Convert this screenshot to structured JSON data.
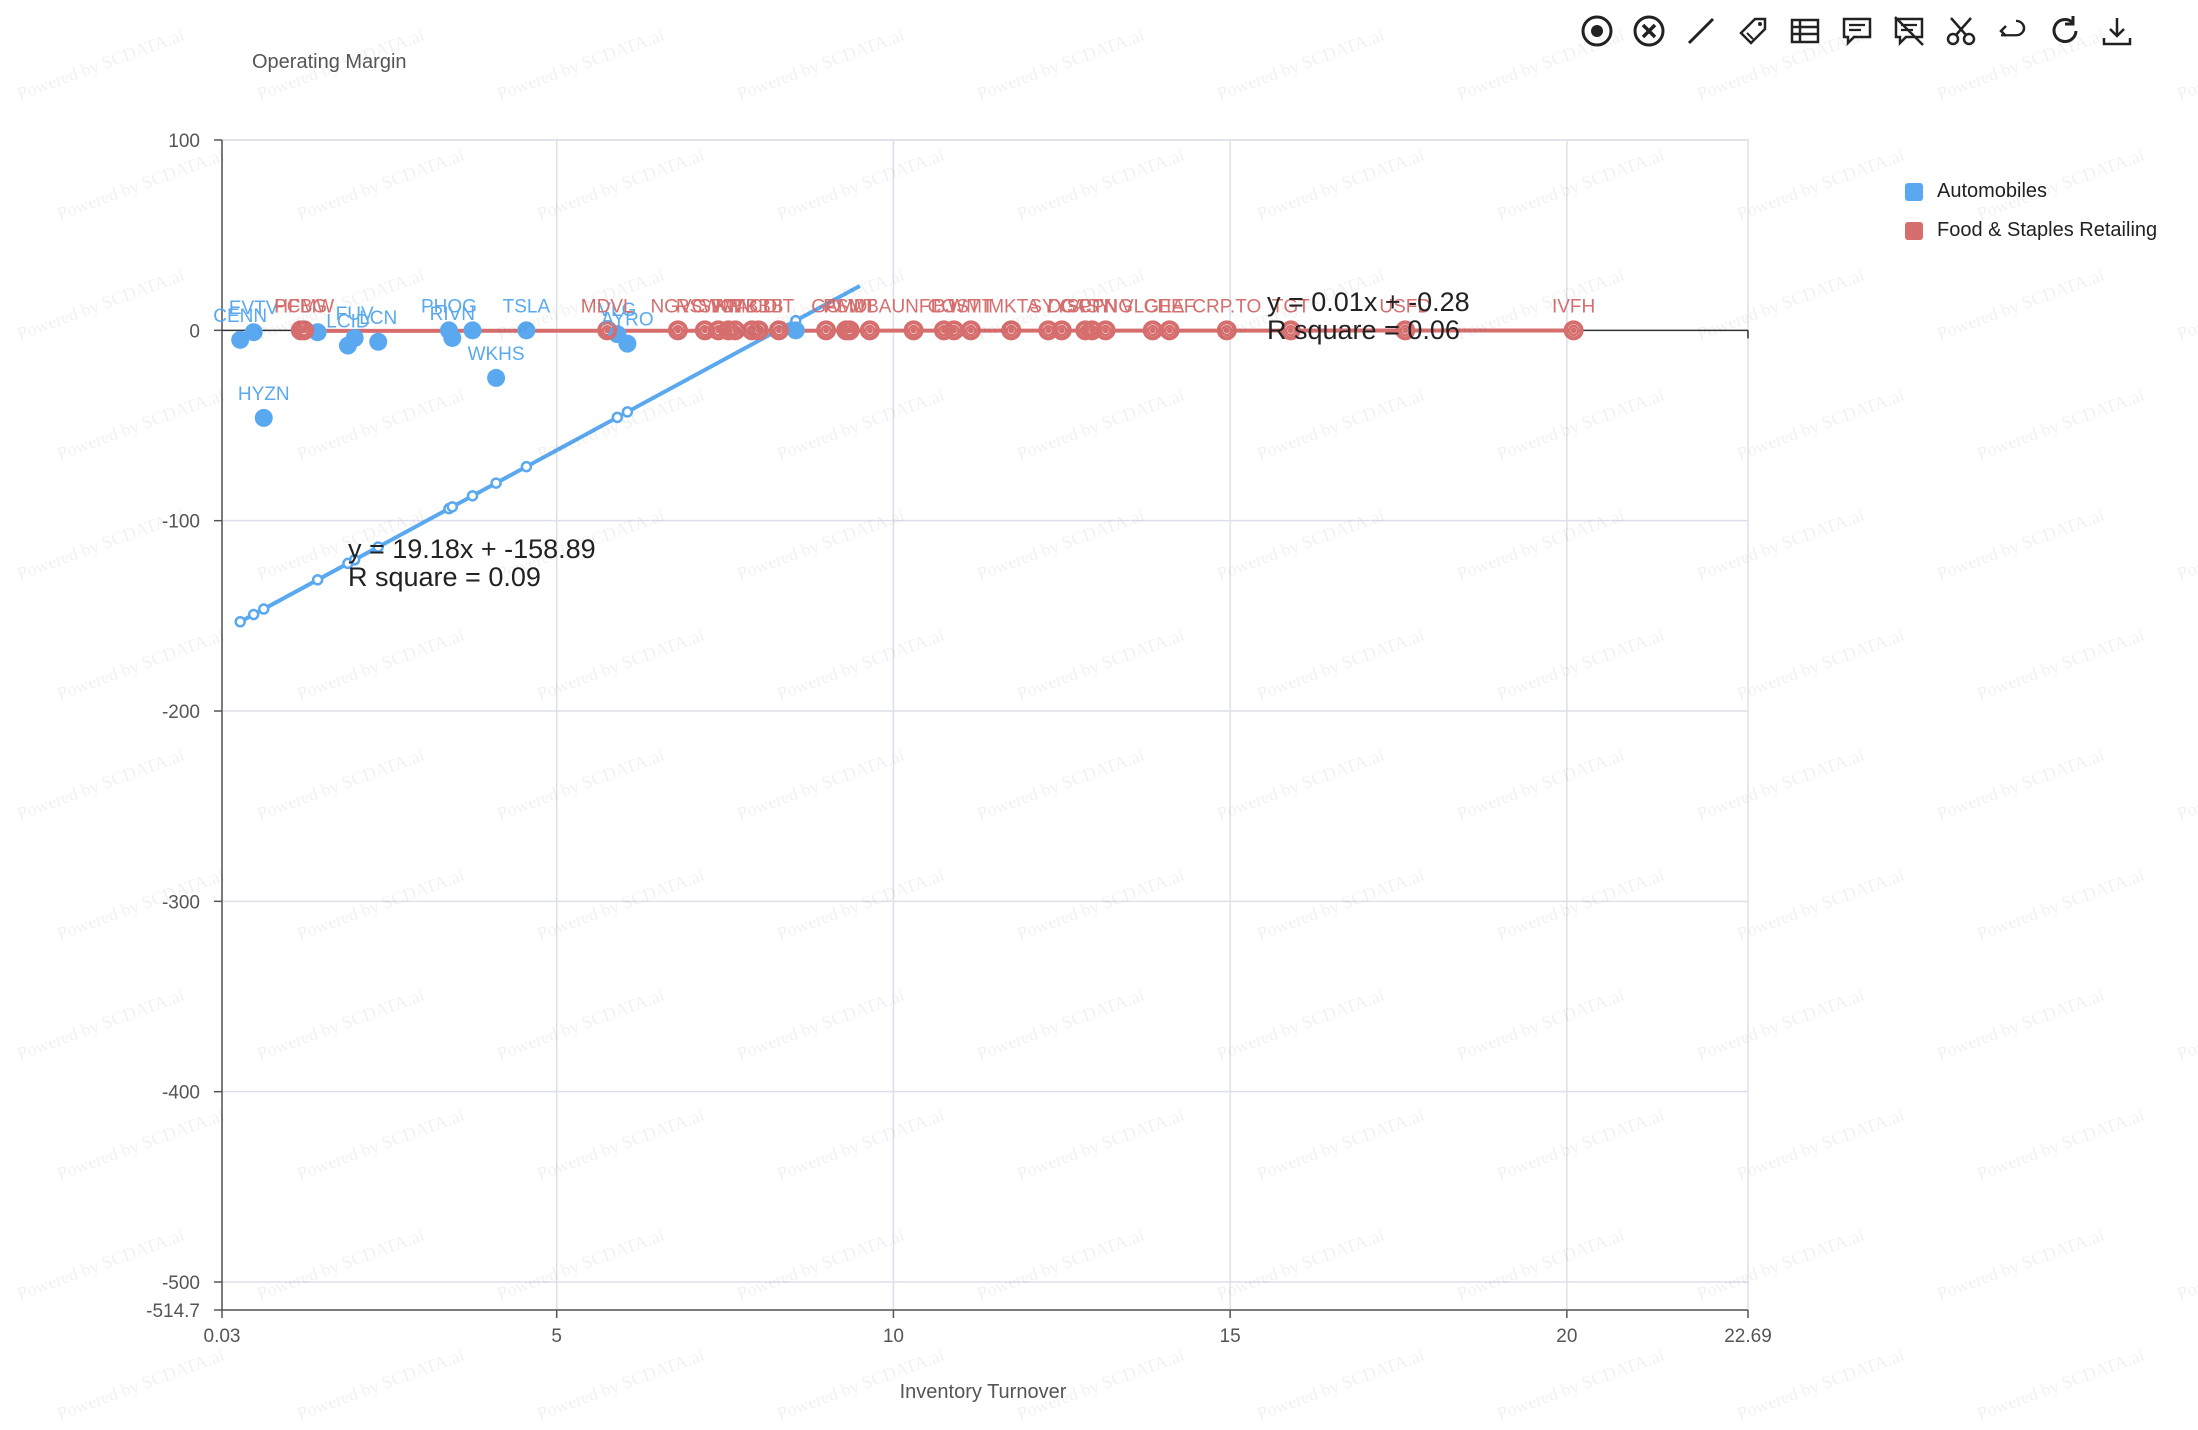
{
  "toolbar": [
    {
      "name": "target-icon",
      "title": "target"
    },
    {
      "name": "clear-icon",
      "title": "clear"
    },
    {
      "name": "line-icon",
      "title": "line"
    },
    {
      "name": "tag-icon",
      "title": "tag"
    },
    {
      "name": "table-icon",
      "title": "table"
    },
    {
      "name": "comment-icon",
      "title": "comment"
    },
    {
      "name": "comment-off-icon",
      "title": "comment off"
    },
    {
      "name": "cut-icon",
      "title": "cut"
    },
    {
      "name": "undo-icon",
      "title": "undo"
    },
    {
      "name": "refresh-icon",
      "title": "refresh"
    },
    {
      "name": "download-icon",
      "title": "download"
    }
  ],
  "watermark_text": "Powered by SCDATA.ai",
  "chart_data": {
    "type": "scatter",
    "xlabel": "Inventory Turnover",
    "ylabel": "Operating Margin",
    "xlim": [
      0.03,
      22.69
    ],
    "ylim": [
      -514.7,
      100
    ],
    "x_ticks": [
      0.03,
      5,
      10,
      15,
      20,
      22.69
    ],
    "x_tick_labels": [
      "0.03",
      "5",
      "10",
      "15",
      "20",
      "22.69"
    ],
    "y_ticks": [
      100,
      0,
      -100,
      -200,
      -300,
      -400,
      -500,
      -514.7
    ],
    "y_tick_labels": [
      "100",
      "0",
      "-100",
      "-200",
      "-300",
      "-400",
      "-500",
      "-514.7"
    ],
    "grid": true,
    "legend_position": "right",
    "series": [
      {
        "name": "Automobiles",
        "color": "#5aa9f0",
        "points": [
          {
            "label": "CENN",
            "x": 0.3,
            "y": -5
          },
          {
            "label": "EVTV",
            "x": 0.5,
            "y": -1
          },
          {
            "label": "HYZN",
            "x": 0.65,
            "y": -46
          },
          {
            "label": "",
            "x": 1.45,
            "y": -1
          },
          {
            "label": "LCID",
            "x": 1.9,
            "y": -8
          },
          {
            "label": "FUV",
            "x": 2.0,
            "y": -4
          },
          {
            "label": "LCN",
            "x": 2.35,
            "y": -6
          },
          {
            "label": "PHOG",
            "x": 3.4,
            "y": 0
          },
          {
            "label": "RIVN",
            "x": 3.45,
            "y": -4
          },
          {
            "label": "",
            "x": 3.75,
            "y": 0
          },
          {
            "label": "WKHS",
            "x": 4.1,
            "y": -25
          },
          {
            "label": "TSLA",
            "x": 4.55,
            "y": 0
          },
          {
            "label": "VLG",
            "x": 5.9,
            "y": -2
          },
          {
            "label": "AYRO",
            "x": 6.05,
            "y": -7
          },
          {
            "label": "",
            "x": 8.55,
            "y": 0
          }
        ],
        "trendline": {
          "slope": 19.18,
          "intercept": -158.89,
          "x_range": [
            0.3,
            9.5
          ],
          "equation": "y = 19.18x + -158.89",
          "r_square": "R square = 0.09"
        }
      },
      {
        "name": "Food & Staples Retailing",
        "color": "#d66e6e",
        "points": [
          {
            "label": "HFBG",
            "x": 1.2,
            "y": 0
          },
          {
            "label": "PCMW",
            "x": 1.25,
            "y": 0
          },
          {
            "label": "MDVL",
            "x": 5.75,
            "y": 0
          },
          {
            "label": "NGVC",
            "x": 6.8,
            "y": 0
          },
          {
            "label": "RSWC",
            "x": 7.2,
            "y": 0
          },
          {
            "label": "SFM",
            "x": 7.4,
            "y": 0
          },
          {
            "label": "KR",
            "x": 7.55,
            "y": 0
          },
          {
            "label": "WMK",
            "x": 7.65,
            "y": 0
          },
          {
            "label": "ACI",
            "x": 7.9,
            "y": 0
          },
          {
            "label": "TBBB",
            "x": 8.0,
            "y": 0
          },
          {
            "label": "DIT",
            "x": 8.3,
            "y": 0
          },
          {
            "label": "GO",
            "x": 9.0,
            "y": 0
          },
          {
            "label": "AMD",
            "x": 9.3,
            "y": 0
          },
          {
            "label": "PSMT",
            "x": 9.35,
            "y": 0
          },
          {
            "label": "WBA",
            "x": 9.65,
            "y": 0
          },
          {
            "label": "UNFI",
            "x": 10.3,
            "y": 0
          },
          {
            "label": "BJ",
            "x": 10.75,
            "y": 0
          },
          {
            "label": "COST",
            "x": 10.9,
            "y": 0
          },
          {
            "label": "WMT",
            "x": 11.15,
            "y": 0
          },
          {
            "label": "IMKTA",
            "x": 11.75,
            "y": 0
          },
          {
            "label": "SYY",
            "x": 12.3,
            "y": 0
          },
          {
            "label": "DG",
            "x": 12.5,
            "y": 0
          },
          {
            "label": "CASY",
            "x": 12.85,
            "y": 0
          },
          {
            "label": "SPTN",
            "x": 12.95,
            "y": 0
          },
          {
            "label": "CPNG",
            "x": 13.15,
            "y": 0
          },
          {
            "label": "VLGEA",
            "x": 13.85,
            "y": 0
          },
          {
            "label": "CHEF",
            "x": 14.1,
            "y": 0
          },
          {
            "label": "CRP.TO",
            "x": 14.95,
            "y": 0
          },
          {
            "label": "TGT",
            "x": 15.9,
            "y": 0
          },
          {
            "label": "USFD",
            "x": 17.6,
            "y": 0
          },
          {
            "label": "IVFH",
            "x": 20.1,
            "y": 0
          }
        ],
        "trendline": {
          "slope": 0.01,
          "intercept": -0.28,
          "x_range": [
            1.2,
            20.1
          ],
          "equation": "y = 0.01x + -0.28",
          "r_square": "R square = 0.06"
        }
      }
    ]
  }
}
